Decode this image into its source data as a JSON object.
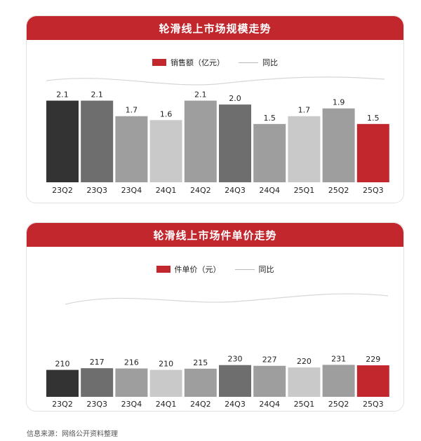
{
  "source_text": "信息来源：网络公开资料整理",
  "chart_data": [
    {
      "type": "bar",
      "title": "轮滑线上市场规模走势",
      "legend": {
        "bar_label": "销售额（亿元）",
        "line_label": "同比"
      },
      "categories": [
        "23Q2",
        "23Q3",
        "23Q4",
        "24Q1",
        "24Q2",
        "24Q3",
        "24Q4",
        "25Q1",
        "25Q2",
        "25Q3"
      ],
      "values": [
        2.1,
        2.1,
        1.7,
        1.6,
        2.1,
        2.0,
        1.5,
        1.7,
        1.9,
        1.5
      ],
      "value_labels": [
        "2.1",
        "2.1",
        "1.7",
        "1.6",
        "2.1",
        "2.0",
        "1.5",
        "1.7",
        "1.9",
        "1.5"
      ],
      "bar_colors": [
        "#333333",
        "#6e6e6e",
        "#9e9e9e",
        "#c9c9c9",
        "#9e9e9e",
        "#6e6e6e",
        "#9e9e9e",
        "#c9c9c9",
        "#9e9e9e",
        "#c1272d"
      ],
      "ylim": [
        0,
        2.2
      ]
    },
    {
      "type": "bar",
      "title": "轮滑线上市场件单价走势",
      "legend": {
        "bar_label": "件单价（元）",
        "line_label": "同比"
      },
      "categories": [
        "23Q2",
        "23Q3",
        "23Q4",
        "24Q1",
        "24Q2",
        "24Q3",
        "24Q4",
        "25Q1",
        "25Q2",
        "25Q3"
      ],
      "values": [
        210,
        217,
        216,
        210,
        215,
        230,
        227,
        220,
        231,
        229
      ],
      "value_labels": [
        "210",
        "217",
        "216",
        "210",
        "215",
        "230",
        "227",
        "220",
        "231",
        "229"
      ],
      "bar_colors": [
        "#333333",
        "#6e6e6e",
        "#9e9e9e",
        "#c9c9c9",
        "#9e9e9e",
        "#6e6e6e",
        "#9e9e9e",
        "#c9c9c9",
        "#9e9e9e",
        "#c1272d"
      ],
      "ylim": [
        0,
        240
      ]
    }
  ]
}
